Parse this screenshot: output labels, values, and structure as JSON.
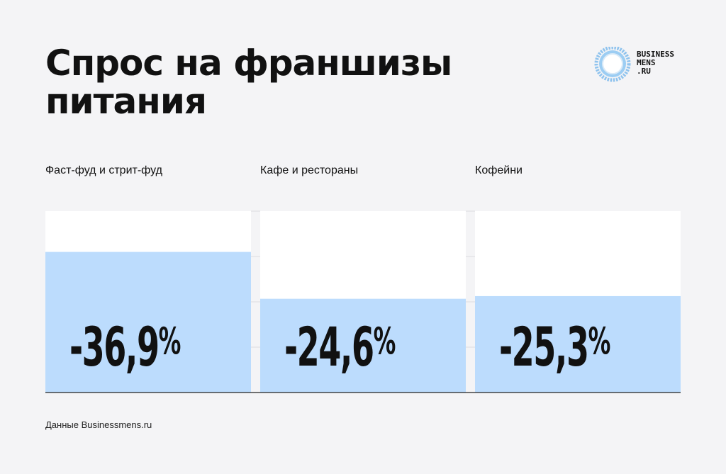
{
  "title": "Спрос на франшизы питания",
  "logo": {
    "line1": "BUSINESS",
    "line2": "MENS",
    "line3": ".RU"
  },
  "source": "Данные Businessmens.ru",
  "colors": {
    "bar": "#bcdcfd",
    "panel": "#ffffff",
    "background": "#f4f4f6",
    "text": "#111111"
  },
  "chart_data": {
    "type": "bar",
    "categories": [
      "Фаст-фуд и стрит-фуд",
      "Кафе и рестораны",
      "Кофейни"
    ],
    "values": [
      -36.9,
      -24.6,
      -25.3
    ],
    "data_labels": [
      "-36,9",
      "-24,6",
      "-25,3"
    ],
    "unit": "%"
  }
}
